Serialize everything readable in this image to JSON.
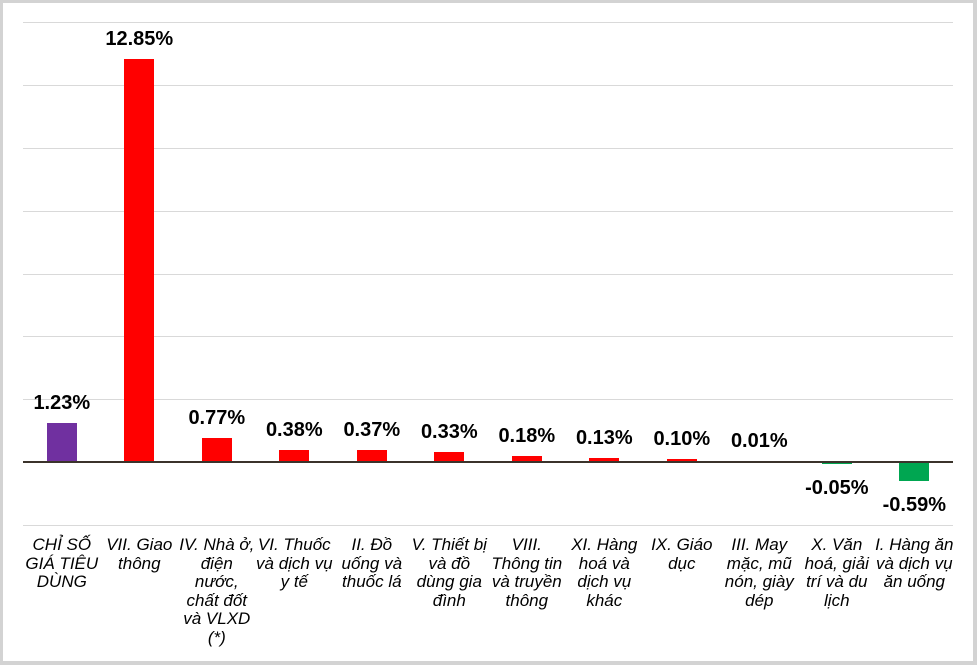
{
  "chart_data": {
    "type": "bar",
    "title": "",
    "xlabel": "",
    "ylabel": "",
    "unit": "%",
    "ylim": [
      -2,
      14
    ],
    "gridline_step": 2,
    "grid": true,
    "legend": "none",
    "gridline_color": "#D9D9D9",
    "axis_color": "#3B332B",
    "frame_border_color": "#D3D3D3",
    "background_color": "#FFFFFF",
    "bars": [
      {
        "category": "CHỈ SỐ GIÁ TIÊU DÙNG",
        "label_lines": "CHỈ SỐ\nGIÁ TIÊU\nDÙNG",
        "value": 1.23,
        "value_label": "1.23%",
        "color": "#7030A0"
      },
      {
        "category": "VII. Giao thông",
        "label_lines": "VII. Giao\nthông",
        "value": 12.85,
        "value_label": "12.85%",
        "color": "#FF0000"
      },
      {
        "category": "IV. Nhà ở, điện nước, chất đốt và VLXD (*)",
        "label_lines": "IV. Nhà ở,\nđiện\nnước,\nchất đốt\nvà VLXD\n(*)",
        "value": 0.77,
        "value_label": "0.77%",
        "color": "#FF0000"
      },
      {
        "category": "VI. Thuốc và dịch vụ y tế",
        "label_lines": "VI. Thuốc\nvà dịch vụ\ny tế",
        "value": 0.38,
        "value_label": "0.38%",
        "color": "#FF0000"
      },
      {
        "category": "II. Đồ uống và thuốc lá",
        "label_lines": "II. Đồ\nuống và\nthuốc lá",
        "value": 0.37,
        "value_label": "0.37%",
        "color": "#FF0000"
      },
      {
        "category": "V. Thiết bị và đồ dùng gia đình",
        "label_lines": "V. Thiết bị\nvà đồ\ndùng gia\nđình",
        "value": 0.33,
        "value_label": "0.33%",
        "color": "#FF0000"
      },
      {
        "category": "VIII. Thông tin và truyền thông",
        "label_lines": "VIII.\nThông tin\nvà truyền\nthông",
        "value": 0.18,
        "value_label": "0.18%",
        "color": "#FF0000"
      },
      {
        "category": "XI. Hàng hoá và dịch vụ khác",
        "label_lines": "XI. Hàng\nhoá và\ndịch vụ\nkhác",
        "value": 0.13,
        "value_label": "0.13%",
        "color": "#FF0000"
      },
      {
        "category": "IX. Giáo dục",
        "label_lines": "IX. Giáo\ndục",
        "value": 0.1,
        "value_label": "0.10%",
        "color": "#FF0000"
      },
      {
        "category": "III. May mặc, mũ nón, giày dép",
        "label_lines": "III. May\nmặc, mũ\nnón, giày\ndép",
        "value": 0.01,
        "value_label": "0.01%",
        "color": "#FF0000"
      },
      {
        "category": "X. Văn hoá, giải trí và du lịch",
        "label_lines": "X. Văn\nhoá, giải\ntrí và du\nlịch",
        "value": -0.05,
        "value_label": "-0.05%",
        "color": "#00A651"
      },
      {
        "category": "I. Hàng ăn và dịch vụ ăn uống",
        "label_lines": "I. Hàng ăn\nvà dịch vụ\năn uống",
        "value": -0.59,
        "value_label": "-0.59%",
        "color": "#00A651"
      }
    ]
  }
}
